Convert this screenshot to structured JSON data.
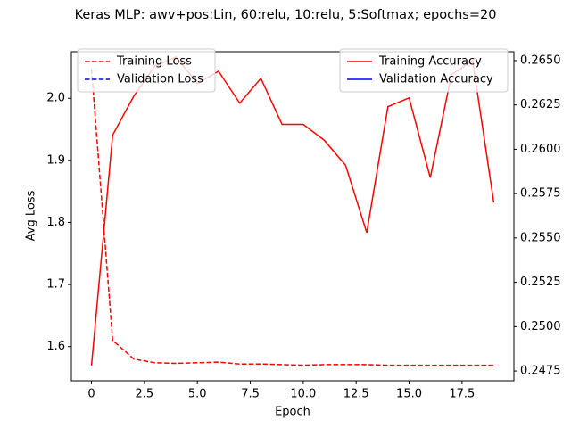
{
  "chart_data": {
    "type": "line",
    "title": "Keras MLP: awv+pos:Lin, 60:relu, 10:relu, 5:Softmax; epochs=20",
    "xlabel": "Epoch",
    "ylabel": "Avg Loss",
    "x": [
      0,
      1,
      2,
      3,
      4,
      5,
      6,
      7,
      8,
      9,
      10,
      11,
      12,
      13,
      14,
      15,
      16,
      17,
      18,
      19
    ],
    "series": [
      {
        "name": "Training Loss",
        "color": "#ff0000",
        "linestyle": "dashed",
        "axis": "y",
        "values": [
          2.047,
          1.61,
          1.58,
          1.574,
          1.573,
          1.574,
          1.575,
          1.572,
          1.572,
          1.571,
          1.57,
          1.571,
          1.571,
          1.571,
          1.57,
          1.57,
          1.57,
          1.57,
          1.57,
          1.57
        ]
      },
      {
        "name": "Validation Loss",
        "color": "#0000ff",
        "linestyle": "dashed",
        "axis": "y",
        "values": [
          null,
          null,
          null,
          null,
          null,
          null,
          null,
          null,
          null,
          null,
          null,
          null,
          null,
          null,
          null,
          null,
          null,
          null,
          null,
          null
        ]
      },
      {
        "name": "Training Accuracy",
        "color": "#ff0000",
        "linestyle": "solid",
        "axis": "y2",
        "values": [
          0.2478,
          0.2608,
          0.263,
          0.2647,
          0.2652,
          0.2637,
          0.2644,
          0.2626,
          0.264,
          0.2614,
          0.2614,
          0.2605,
          0.2591,
          0.2553,
          0.2624,
          0.2629,
          0.2584,
          0.2642,
          0.265,
          0.257
        ]
      },
      {
        "name": "Validation Accuracy",
        "color": "#0000ff",
        "linestyle": "solid",
        "axis": "y2",
        "values": [
          null,
          null,
          null,
          null,
          null,
          null,
          null,
          null,
          null,
          null,
          null,
          null,
          null,
          null,
          null,
          null,
          null,
          null,
          null,
          null
        ]
      }
    ],
    "xlim": [
      -0.95,
      19.95
    ],
    "xticks": [
      0,
      2.5,
      {
        "value": 5,
        "label": "5.0"
      },
      7.5,
      {
        "value": 10,
        "label": "10.0"
      },
      12.5,
      {
        "value": 15,
        "label": "15.0"
      },
      17.5
    ],
    "ylim": [
      1.545,
      2.075
    ],
    "yticks": [
      1.6,
      1.7,
      1.8,
      1.9,
      {
        "value": 2,
        "label": "2.0"
      }
    ],
    "y2lim": [
      0.24695,
      0.2655
    ],
    "y2ticks": [
      0.2475,
      {
        "value": 0.25,
        "label": "0.2500"
      },
      0.2525,
      {
        "value": 0.255,
        "label": "0.2550"
      },
      0.2575,
      {
        "value": 0.26,
        "label": "0.2600"
      },
      0.2625,
      {
        "value": 0.265,
        "label": "0.2650"
      }
    ],
    "legend": "upper left",
    "legend2": "upper right",
    "grid": false
  }
}
